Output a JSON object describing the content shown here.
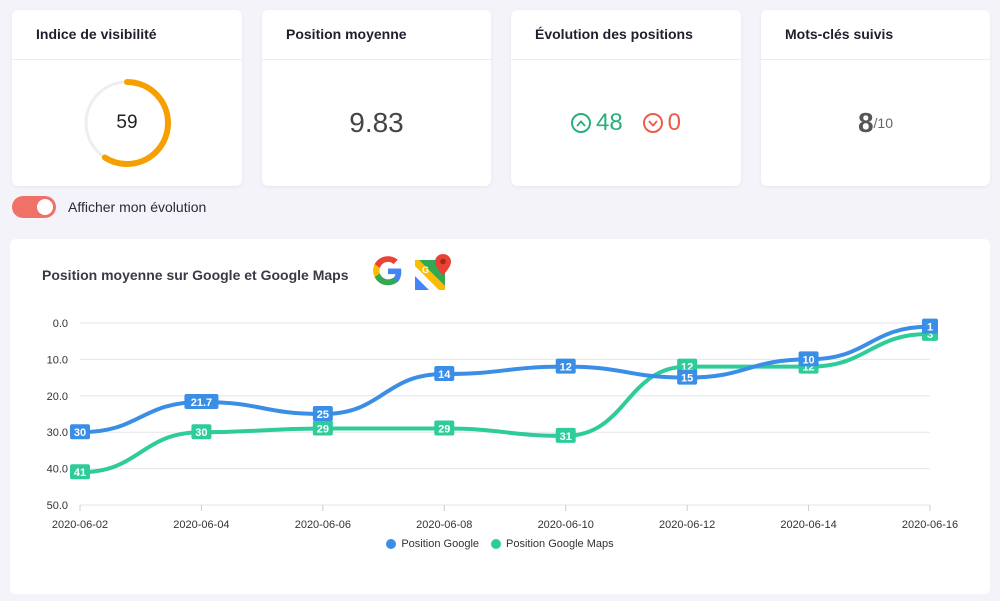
{
  "cards": {
    "visibility": {
      "title": "Indice de visibilité",
      "value": "59",
      "score": 59,
      "max": 100
    },
    "avg_position": {
      "title": "Position moyenne",
      "value": "9.83"
    },
    "evolution": {
      "title": "Évolution des positions",
      "up": "48",
      "down": "0"
    },
    "keywords": {
      "title": "Mots-clés suivis",
      "value": "8",
      "total": "/10"
    }
  },
  "toggle": {
    "label": "Afficher mon évolution",
    "on": true
  },
  "chart": {
    "title": "Position moyenne sur Google et Google Maps",
    "logos": [
      "google-logo",
      "google-maps-logo"
    ]
  },
  "colors": {
    "google": "#3a8ee6",
    "maps": "#2ecc9a",
    "accent": "#f5a000",
    "toggle": "#f07167"
  },
  "chart_data": {
    "type": "line",
    "title": "Position moyenne sur Google et Google Maps",
    "x": [
      "2020-06-02",
      "2020-06-04",
      "2020-06-06",
      "2020-06-08",
      "2020-06-10",
      "2020-06-12",
      "2020-06-14",
      "2020-06-16"
    ],
    "y_ticks": [
      "0.0",
      "10.0",
      "20.0",
      "30.0",
      "40.0",
      "50.0"
    ],
    "ylim": [
      0,
      50
    ],
    "y_reversed": true,
    "grid": true,
    "legend": "bottom-center",
    "series": [
      {
        "name": "Position Google",
        "values": [
          30,
          21.7,
          25,
          14,
          12,
          15,
          10,
          1
        ],
        "labels": [
          "30",
          "21.7",
          "25",
          "14",
          "12",
          "15",
          "10",
          "1"
        ]
      },
      {
        "name": "Position Google Maps",
        "values": [
          41,
          30,
          29,
          29,
          31,
          12,
          12,
          3
        ],
        "labels": [
          "41",
          "30",
          "29",
          "29",
          "31",
          "12",
          "12",
          "3"
        ]
      }
    ]
  }
}
